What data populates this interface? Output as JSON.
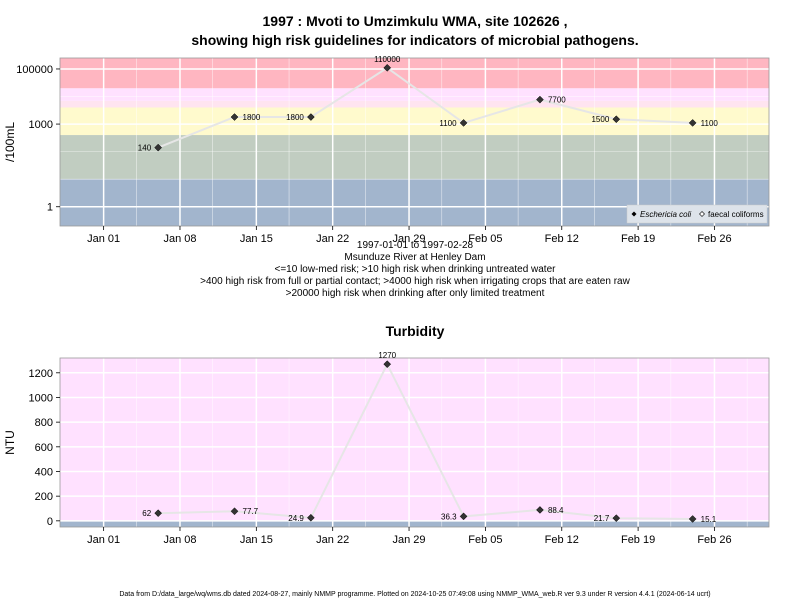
{
  "title_line1": "1997 : Mvoti to Umzimkulu WMA, site 102626 ,",
  "title_line2": "showing high risk guidelines for indicators of microbial pathogens.",
  "subtitle_lines": [
    "1997-01-01 to 1997-02-28",
    "Msunduze River at Henley Dam",
    "<=10 low-med risk; >10 high risk when drinking untreated water",
    ">400 high risk from full or partial contact; >4000 high risk when irrigating crops that are eaten raw",
    ">20000 high risk when drinking after only limited treatment"
  ],
  "footer": "Data from D:/data_large/wq/wms.db dated 2024-08-27, mainly NMMP programme. Plotted on 2024-10-25 07:49:08 using NMMP_WMA_web.R ver 9.3 under R version 4.4.1 (2024-06-14 ucrt)",
  "colors": {
    "band_blue": "#a2b5cd",
    "band_grey": "#c1cdc1",
    "band_yellow": "#fffacd",
    "band_pink_light": "#ffe4f0",
    "band_magenta": "#ffe1ff",
    "band_red": "#ffb6c1",
    "grid": "#ffffff",
    "line": "#e6e6e6",
    "point": "#333333",
    "turb_bg": "#ffe1ff",
    "turb_base": "#a2b5cd"
  },
  "chart_data": [
    {
      "type": "line",
      "title": "",
      "ylabel": "/100mL",
      "xlabel": "",
      "y_scale": "log",
      "ylim": [
        0.2,
        250000
      ],
      "xlim": [
        "1996-12-28",
        "1997-03-03"
      ],
      "x_ticks": [
        {
          "date": "1997-01-01",
          "label": "Jan 01"
        },
        {
          "date": "1997-01-08",
          "label": "Jan 08"
        },
        {
          "date": "1997-01-15",
          "label": "Jan 15"
        },
        {
          "date": "1997-01-22",
          "label": "Jan 22"
        },
        {
          "date": "1997-01-29",
          "label": "Jan 29"
        },
        {
          "date": "1997-02-05",
          "label": "Feb 05"
        },
        {
          "date": "1997-02-12",
          "label": "Feb 12"
        },
        {
          "date": "1997-02-19",
          "label": "Feb 19"
        },
        {
          "date": "1997-02-26",
          "label": "Feb 26"
        }
      ],
      "y_ticks": [
        {
          "value": 1,
          "label": "1"
        },
        {
          "value": 1000,
          "label": "1000"
        },
        {
          "value": 100000,
          "label": "100000"
        }
      ],
      "bands": [
        {
          "from": 0.2,
          "to": 10,
          "color": "band_blue"
        },
        {
          "from": 10,
          "to": 400,
          "color": "band_grey"
        },
        {
          "from": 400,
          "to": 4000,
          "color": "band_yellow"
        },
        {
          "from": 4000,
          "to": 7000,
          "color": "band_pink_light"
        },
        {
          "from": 7000,
          "to": 20000,
          "color": "band_magenta"
        },
        {
          "from": 20000,
          "to": 250000,
          "color": "band_red"
        }
      ],
      "series": [
        {
          "name": "Eschericia coli",
          "points": [
            {
              "date": "1997-01-06",
              "value": 140,
              "label": "140"
            },
            {
              "date": "1997-01-13",
              "value": 1800,
              "label": "1800"
            },
            {
              "date": "1997-01-20",
              "value": 1800,
              "label": "1800"
            },
            {
              "date": "1997-01-27",
              "value": 110000,
              "label": "110000"
            },
            {
              "date": "1997-02-03",
              "value": 1100,
              "label": "1100"
            },
            {
              "date": "1997-02-10",
              "value": 7700,
              "label": "7700"
            },
            {
              "date": "1997-02-17",
              "value": 1500,
              "label": "1500"
            },
            {
              "date": "1997-02-24",
              "value": 1100,
              "label": "1100"
            }
          ]
        }
      ],
      "legend": {
        "position": "bottom-right",
        "entries": [
          {
            "label": "Eschericia coli",
            "marker": "filled-diamond"
          },
          {
            "label": "faecal coliforms",
            "marker": "open-diamond"
          }
        ]
      }
    },
    {
      "type": "line",
      "title": "Turbidity",
      "ylabel": "NTU",
      "xlabel": "",
      "y_scale": "linear",
      "ylim": [
        -50,
        1320
      ],
      "xlim": [
        "1996-12-28",
        "1997-03-03"
      ],
      "x_ticks": [
        {
          "date": "1997-01-01",
          "label": "Jan 01"
        },
        {
          "date": "1997-01-08",
          "label": "Jan 08"
        },
        {
          "date": "1997-01-15",
          "label": "Jan 15"
        },
        {
          "date": "1997-01-22",
          "label": "Jan 22"
        },
        {
          "date": "1997-01-29",
          "label": "Jan 29"
        },
        {
          "date": "1997-02-05",
          "label": "Feb 05"
        },
        {
          "date": "1997-02-12",
          "label": "Feb 12"
        },
        {
          "date": "1997-02-19",
          "label": "Feb 19"
        },
        {
          "date": "1997-02-26",
          "label": "Feb 26"
        }
      ],
      "y_ticks": [
        {
          "value": 0,
          "label": "0"
        },
        {
          "value": 200,
          "label": "200"
        },
        {
          "value": 400,
          "label": "400"
        },
        {
          "value": 600,
          "label": "600"
        },
        {
          "value": 800,
          "label": "800"
        },
        {
          "value": 1000,
          "label": "1000"
        },
        {
          "value": 1200,
          "label": "1200"
        }
      ],
      "series": [
        {
          "name": "",
          "points": [
            {
              "date": "1997-01-06",
              "value": 62,
              "label": "62"
            },
            {
              "date": "1997-01-13",
              "value": 77.7,
              "label": "77.7"
            },
            {
              "date": "1997-01-20",
              "value": 24.9,
              "label": "24.9"
            },
            {
              "date": "1997-01-27",
              "value": 1270,
              "label": "1270"
            },
            {
              "date": "1997-02-03",
              "value": 36.3,
              "label": "36.3"
            },
            {
              "date": "1997-02-10",
              "value": 88.4,
              "label": "88.4"
            },
            {
              "date": "1997-02-17",
              "value": 21.7,
              "label": "21.7"
            },
            {
              "date": "1997-02-24",
              "value": 15.1,
              "label": "15.1"
            }
          ]
        }
      ]
    }
  ]
}
